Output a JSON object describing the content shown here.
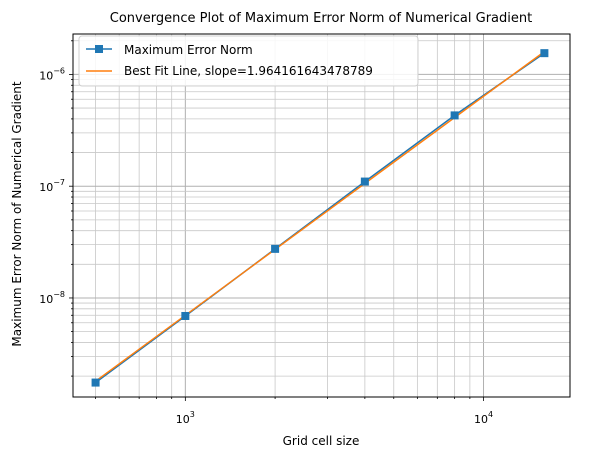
{
  "chart_data": {
    "type": "line",
    "title": "Convergence Plot of Maximum Error Norm of Numerical Gradient",
    "xlabel": "Grid cell size",
    "ylabel": "Maximum Error Norm of Numerical Gradient",
    "xscale": "log",
    "yscale": "log",
    "xlim": [
      420,
      19500
    ],
    "ylim": [
      1.3e-09,
      2.3e-06
    ],
    "grid": "both (major and minor)",
    "legend_position": "top-left",
    "x_ticks": [
      {
        "value": 1000,
        "base": "10",
        "exp": "3"
      },
      {
        "value": 10000,
        "base": "10",
        "exp": "4"
      }
    ],
    "y_ticks": [
      {
        "value": 1e-08,
        "base": "10",
        "exp": "−8"
      },
      {
        "value": 1e-07,
        "base": "10",
        "exp": "−7"
      },
      {
        "value": 1e-06,
        "base": "10",
        "exp": "−6"
      }
    ],
    "series": [
      {
        "name": "Maximum Error Norm",
        "color": "#1f77b4",
        "marker": "square",
        "x": [
          500,
          1000,
          2000,
          4000,
          8000,
          16000
        ],
        "y": [
          1.75e-09,
          6.9e-09,
          2.75e-08,
          1.1e-07,
          4.3e-07,
          1.55e-06
        ]
      },
      {
        "name": "Best Fit Line, slope=1.964161643478789",
        "color": "#ff7f0e",
        "marker": "none",
        "x": [
          500,
          16000
        ],
        "y": [
          1.8e-09,
          1.6e-06
        ]
      }
    ]
  }
}
